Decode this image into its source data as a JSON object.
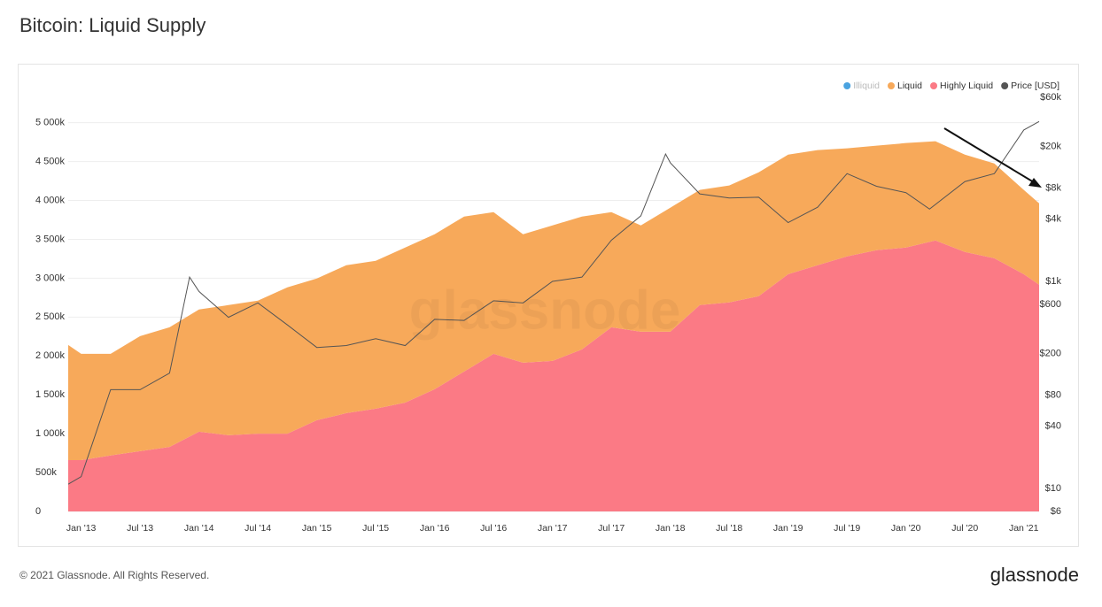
{
  "chart_data": {
    "type": "stacked-area",
    "title": "Bitcoin: Liquid Supply",
    "watermark": "glassnode",
    "footer": "© 2021 Glassnode. All Rights Reserved.",
    "brand": "glassnode",
    "x": [
      2012.89,
      2013.0,
      2013.25,
      2013.5,
      2013.75,
      2014.0,
      2014.25,
      2014.5,
      2014.75,
      2015.0,
      2015.25,
      2015.5,
      2015.75,
      2016.0,
      2016.25,
      2016.5,
      2016.75,
      2017.0,
      2017.25,
      2017.5,
      2017.75,
      2018.0,
      2018.25,
      2018.5,
      2018.75,
      2019.0,
      2019.25,
      2019.5,
      2019.75,
      2020.0,
      2020.25,
      2020.5,
      2020.75,
      2021.0,
      2021.13
    ],
    "series": [
      {
        "name": "Illiquid",
        "color": "#4aa3e0",
        "hidden": true
      },
      {
        "name": "Liquid",
        "color": "#f7a95a",
        "values": [
          1481,
          1367,
          1307,
          1480,
          1539,
          1572,
          1674,
          1711,
          1882,
          1823,
          1902,
          1902,
          1994,
          1993,
          1993,
          1823,
          1652,
          1743,
          1709,
          1481,
          1367,
          1595,
          1481,
          1504,
          1594,
          1538,
          1481,
          1390,
          1344,
          1344,
          1276,
          1253,
          1219,
          1083,
          1048
        ]
      },
      {
        "name": "Highly Liquid",
        "color": "#fb7a85",
        "values": [
          660,
          660,
          720,
          775,
          830,
          1025,
          980,
          1000,
          1000,
          1173,
          1264,
          1321,
          1400,
          1572,
          1800,
          2027,
          1913,
          1936,
          2084,
          2369,
          2312,
          2312,
          2654,
          2688,
          2768,
          3052,
          3166,
          3280,
          3360,
          3394,
          3485,
          3337,
          3257,
          3052,
          2916
        ]
      },
      {
        "name": "Price [USD]",
        "color": "#555555",
        "axis": "y2",
        "x": [
          2012.89,
          2013.0,
          2013.25,
          2013.5,
          2013.75,
          2013.92,
          2014.0,
          2014.25,
          2014.5,
          2014.75,
          2015.0,
          2015.25,
          2015.5,
          2015.75,
          2016.0,
          2016.25,
          2016.5,
          2016.75,
          2017.0,
          2017.25,
          2017.5,
          2017.75,
          2017.96,
          2018.0,
          2018.25,
          2018.5,
          2018.75,
          2019.0,
          2019.25,
          2019.5,
          2019.75,
          2020.0,
          2020.2,
          2020.5,
          2020.75,
          2021.0,
          2021.13
        ],
        "values": [
          11,
          13,
          90,
          90,
          130,
          1100,
          800,
          450,
          620,
          380,
          230,
          240,
          280,
          240,
          430,
          420,
          650,
          620,
          1000,
          1100,
          2500,
          4300,
          17000,
          14000,
          7000,
          6400,
          6500,
          3700,
          5200,
          11000,
          8300,
          7200,
          5000,
          9200,
          11000,
          29000,
          35000
        ]
      }
    ],
    "xlim": [
      2012.89,
      2021.13
    ],
    "xticks": [
      {
        "value": 2013,
        "label": "Jan '13"
      },
      {
        "value": 2013.5,
        "label": "Jul '13"
      },
      {
        "value": 2014,
        "label": "Jan '14"
      },
      {
        "value": 2014.5,
        "label": "Jul '14"
      },
      {
        "value": 2015,
        "label": "Jan '15"
      },
      {
        "value": 2015.5,
        "label": "Jul '15"
      },
      {
        "value": 2016,
        "label": "Jan '16"
      },
      {
        "value": 2016.5,
        "label": "Jul '16"
      },
      {
        "value": 2017,
        "label": "Jan '17"
      },
      {
        "value": 2017.5,
        "label": "Jul '17"
      },
      {
        "value": 2018,
        "label": "Jan '18"
      },
      {
        "value": 2018.5,
        "label": "Jul '18"
      },
      {
        "value": 2019,
        "label": "Jan '19"
      },
      {
        "value": 2019.5,
        "label": "Jul '19"
      },
      {
        "value": 2020,
        "label": "Jan '20"
      },
      {
        "value": 2020.5,
        "label": "Jul '20"
      },
      {
        "value": 2021,
        "label": "Jan '21"
      }
    ],
    "ylim": [
      0,
      5440
    ],
    "yticks": [
      0,
      {
        "value": 500,
        "label": "500k"
      },
      {
        "value": 1000,
        "label": "1 000k"
      },
      {
        "value": 1500,
        "label": "1 500k"
      },
      {
        "value": 2000,
        "label": "2 000k"
      },
      {
        "value": 2500,
        "label": "2 500k"
      },
      {
        "value": 3000,
        "label": "3 000k"
      },
      {
        "value": 3500,
        "label": "3 500k"
      },
      {
        "value": 4000,
        "label": "4 000k"
      },
      {
        "value": 4500,
        "label": "4 500k"
      },
      {
        "value": 5000,
        "label": "5 000k"
      }
    ],
    "y2lim": [
      6,
      73000
    ],
    "y2log": true,
    "y2ticks": [
      {
        "value": 6,
        "label": "$6"
      },
      {
        "value": 10,
        "label": "$10"
      },
      {
        "value": 40,
        "label": "$40"
      },
      {
        "value": 80,
        "label": "$80"
      },
      {
        "value": 200,
        "label": "$200"
      },
      {
        "value": 600,
        "label": "$600"
      },
      {
        "value": 1000,
        "label": "$1k"
      },
      {
        "value": 4000,
        "label": "$4k"
      },
      {
        "value": 8000,
        "label": "$8k"
      },
      {
        "value": 20000,
        "label": "$20k"
      },
      {
        "value": 60000,
        "label": "$60k"
      }
    ],
    "grid": true,
    "legend": "top-right"
  }
}
